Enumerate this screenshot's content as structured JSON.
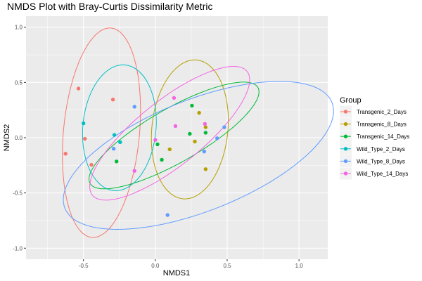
{
  "chart_data": {
    "type": "scatter",
    "title": "NMDS Plot with Bray-Curtis Dissimilarity Metric",
    "xlabel": "NMDS1",
    "ylabel": "NMDS2",
    "xlim": [
      -0.9,
      1.2
    ],
    "ylim": [
      -1.1,
      1.1
    ],
    "xticks": [
      -0.5,
      0.0,
      0.5,
      1.0
    ],
    "xtick_labels": [
      "-0.5",
      "0.0",
      "0.5",
      "1.0"
    ],
    "yticks": [
      -1.0,
      -0.5,
      0.0,
      0.5,
      1.0
    ],
    "ytick_labels": [
      "-1.0",
      "-0.5",
      "0.0",
      "0.5",
      "1.0"
    ],
    "grid": true,
    "legend": {
      "title": "Group",
      "position": "right"
    },
    "series": [
      {
        "name": "Transgenic_2_Days",
        "color": "#F8766D",
        "points": [
          [
            -0.535,
            0.445
          ],
          [
            -0.295,
            0.345
          ],
          [
            -0.49,
            -0.01
          ],
          [
            -0.625,
            -0.145
          ],
          [
            -0.445,
            -0.245
          ]
        ],
        "ellipse": {
          "cx": -0.375,
          "cy": 0.045,
          "rx": 0.95,
          "ry": 0.265,
          "angle_deg": 86.2
        }
      },
      {
        "name": "Transgenic_8_Days",
        "color": "#B79F00",
        "points": [
          [
            0.305,
            0.225
          ],
          [
            0.35,
            0.095
          ],
          [
            0.275,
            -0.035
          ],
          [
            0.1,
            -0.105
          ],
          [
            0.35,
            -0.285
          ]
        ],
        "ellipse": {
          "cx": 0.24,
          "cy": 0.075,
          "rx": 0.63,
          "ry": 0.265,
          "angle_deg": 86.2
        }
      },
      {
        "name": "Transgenic_14_Days",
        "color": "#00BA38",
        "points": [
          [
            0.255,
            0.29
          ],
          [
            0.24,
            0.035
          ],
          [
            0.35,
            0.045
          ],
          [
            0.015,
            -0.06
          ],
          [
            0.045,
            -0.2
          ],
          [
            -0.27,
            -0.215
          ]
        ],
        "ellipse": {
          "cx": 0.13,
          "cy": 0.02,
          "rx": 0.73,
          "ry": 0.225,
          "angle_deg": 38
        }
      },
      {
        "name": "Wild_Type_2_Days",
        "color": "#00BFC4",
        "points": [
          [
            -0.5,
            0.13
          ],
          [
            -0.245,
            -0.04
          ],
          [
            -0.285,
            0.025
          ]
        ],
        "ellipse": {
          "cx": -0.25,
          "cy": 0.09,
          "rx": 0.57,
          "ry": 0.255,
          "angle_deg": 86.8
        }
      },
      {
        "name": "Wild_Type_8_Days",
        "color": "#619CFF",
        "points": [
          [
            -0.145,
            0.28
          ],
          [
            0.48,
            0.095
          ],
          [
            0.43,
            -0.005
          ],
          [
            0.34,
            -0.125
          ],
          [
            -0.29,
            -0.1
          ],
          [
            0.085,
            -0.7
          ]
        ],
        "ellipse": {
          "cx": 0.3,
          "cy": -0.16,
          "rx": 1.05,
          "ry": 0.48,
          "angle_deg": 30
        }
      },
      {
        "name": "Wild_Type_14_Days",
        "color": "#F564E3",
        "points": [
          [
            0.13,
            0.36
          ],
          [
            0.14,
            0.105
          ],
          [
            0.345,
            0.125
          ],
          [
            0.0,
            -0.02
          ],
          [
            -0.145,
            -0.3
          ]
        ],
        "ellipse": {
          "cx": 0.1,
          "cy": 0.04,
          "rx": 0.78,
          "ry": 0.26,
          "angle_deg": 48
        }
      }
    ]
  }
}
